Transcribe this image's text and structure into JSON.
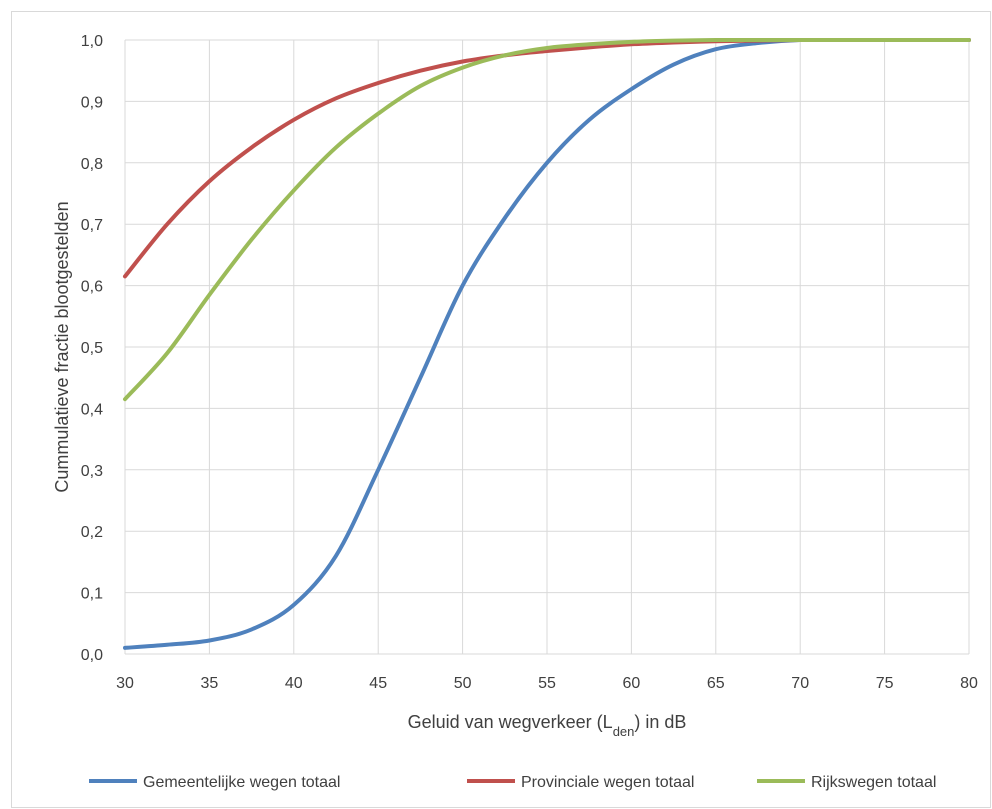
{
  "chart_data": {
    "type": "line",
    "xlabel": "Geluid van wegverkeer (L",
    "xlabel_sub": "den",
    "xlabel_suffix": ") in dB",
    "ylabel": "Cummulatieve fractie blootgestelden",
    "xlim": [
      30,
      80
    ],
    "ylim": [
      0,
      1
    ],
    "x_ticks": [
      "30",
      "35",
      "40",
      "45",
      "50",
      "55",
      "60",
      "65",
      "70",
      "75",
      "80"
    ],
    "y_ticks": [
      "0,0",
      "0,1",
      "0,2",
      "0,3",
      "0,4",
      "0,5",
      "0,6",
      "0,7",
      "0,8",
      "0,9",
      "1,0"
    ],
    "grid": true,
    "legend_position": "bottom",
    "x": [
      30,
      32.5,
      35,
      37.5,
      40,
      42.5,
      45,
      47.5,
      50,
      52.5,
      55,
      57.5,
      60,
      62.5,
      65,
      67.5,
      70,
      72.5,
      75,
      77.5,
      80
    ],
    "series": [
      {
        "name": "Gemeentelijke wegen totaal",
        "color": "#4f81bd",
        "values": [
          0.01,
          0.015,
          0.022,
          0.04,
          0.08,
          0.16,
          0.3,
          0.45,
          0.6,
          0.71,
          0.8,
          0.87,
          0.92,
          0.96,
          0.985,
          0.995,
          1.0,
          1.0,
          1.0,
          1.0,
          1.0
        ]
      },
      {
        "name": "Provinciale wegen totaal",
        "color": "#c0504d",
        "values": [
          0.615,
          0.7,
          0.77,
          0.825,
          0.87,
          0.905,
          0.93,
          0.95,
          0.965,
          0.975,
          0.982,
          0.988,
          0.993,
          0.996,
          0.998,
          0.999,
          1.0,
          1.0,
          1.0,
          1.0,
          1.0
        ]
      },
      {
        "name": "Rijkswegen totaal",
        "color": "#9bbb59",
        "values": [
          0.415,
          0.49,
          0.585,
          0.675,
          0.755,
          0.825,
          0.88,
          0.925,
          0.955,
          0.975,
          0.987,
          0.993,
          0.997,
          0.999,
          1.0,
          1.0,
          1.0,
          1.0,
          1.0,
          1.0,
          1.0
        ]
      }
    ]
  }
}
